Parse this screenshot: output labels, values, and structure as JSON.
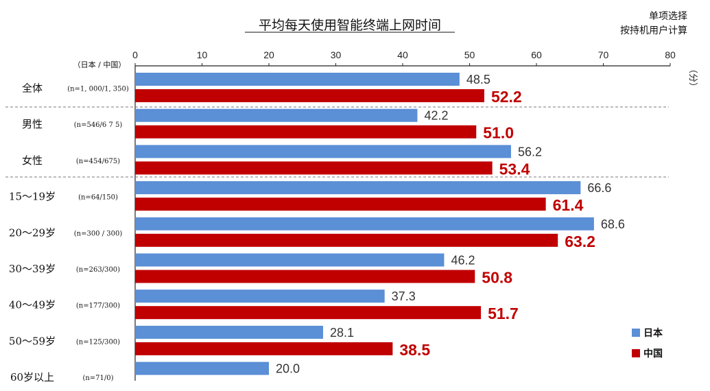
{
  "chart_data": {
    "type": "bar",
    "orientation": "horizontal",
    "title": "平均每天使用智能终端上网时间",
    "notes": [
      "单项选择",
      "按持机用户计算"
    ],
    "unit_label": "（分）",
    "group_header": "（日本 / 中国）",
    "xlim": [
      0,
      80
    ],
    "xticks": [
      "0",
      "10",
      "20",
      "30",
      "40",
      "50",
      "60",
      "70",
      "80"
    ],
    "categories": [
      "全体",
      "男性",
      "女性",
      "15～19岁",
      "20～29岁",
      "30～39岁",
      "40～49岁",
      "50～59岁",
      "60岁以上"
    ],
    "sample_sizes": [
      "(n=1, 000/1, 350)",
      "(n=546/6 7 5)",
      "(n=454/675)",
      "(n=64/150)",
      "(n=300 / 300)",
      "(n=263/300)",
      "(n=177/300)",
      "(n=125/300)",
      "(n=71/0)"
    ],
    "series": [
      {
        "name": "日本",
        "color": "#5b8fd6",
        "values": [
          48.5,
          42.2,
          56.2,
          66.6,
          68.6,
          46.2,
          37.3,
          28.1,
          20.0
        ],
        "labels": [
          "48.5",
          "42.2",
          "56.2",
          "66.6",
          "68.6",
          "46.2",
          "37.3",
          "28.1",
          "20.0"
        ]
      },
      {
        "name": "中国",
        "color": "#c00000",
        "values": [
          52.2,
          51.0,
          53.4,
          61.4,
          63.2,
          50.8,
          51.7,
          38.5,
          null
        ],
        "labels": [
          "52.2",
          "51.0",
          "53.4",
          "61.4",
          "63.2",
          "50.8",
          "51.7",
          "38.5",
          ""
        ]
      }
    ],
    "legend_position": "bottom-right",
    "grid": false
  }
}
